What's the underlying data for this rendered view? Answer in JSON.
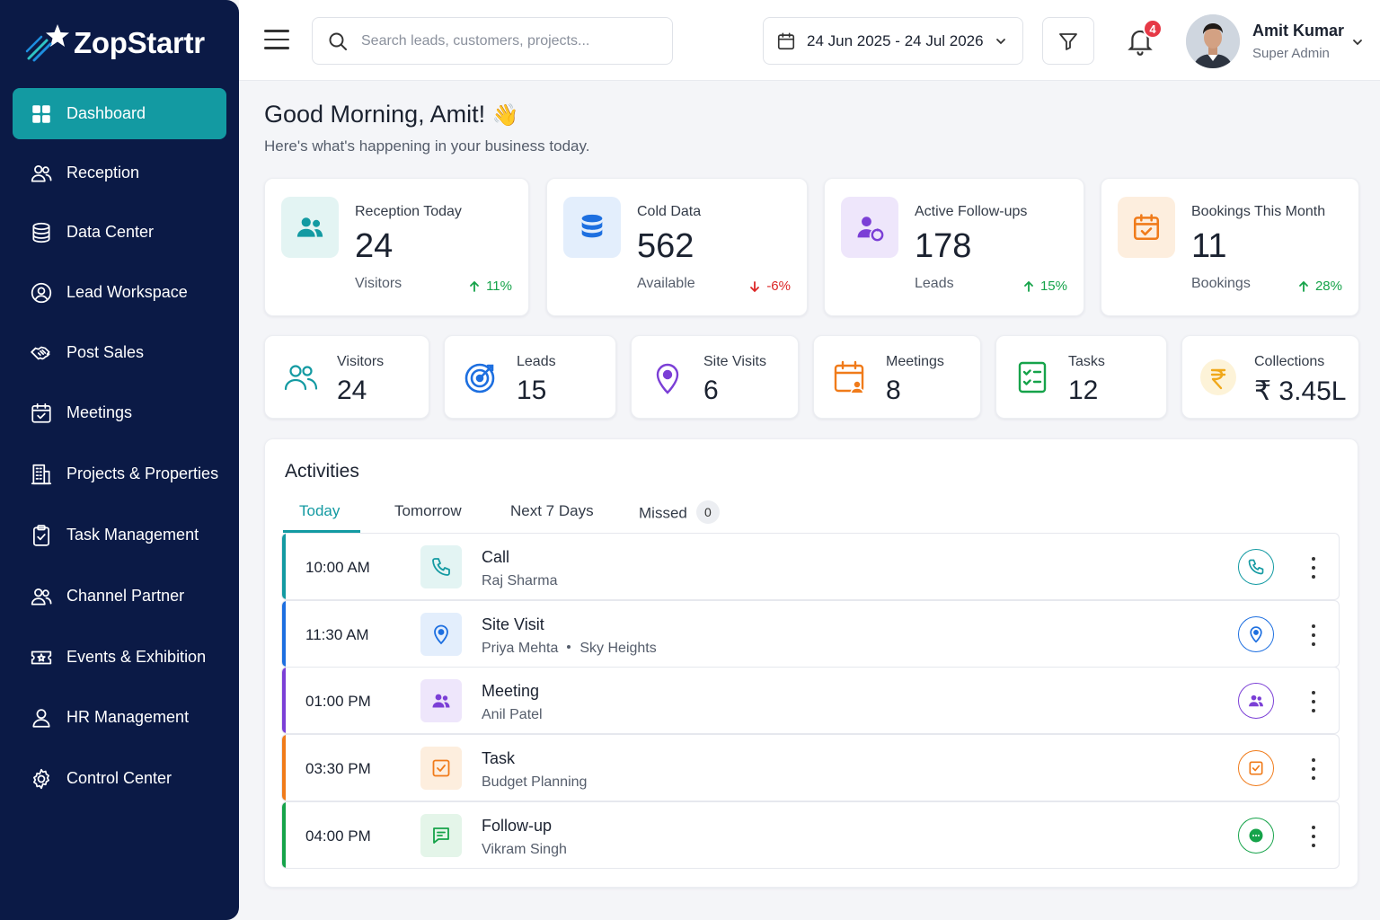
{
  "brand": {
    "name": "ZopStartr"
  },
  "sidebar": {
    "items": [
      {
        "label": "Dashboard",
        "icon": "dashboard-icon",
        "active": true
      },
      {
        "label": "Reception",
        "icon": "users-icon"
      },
      {
        "label": "Data Center",
        "icon": "database-icon"
      },
      {
        "label": "Lead Workspace",
        "icon": "lead-icon"
      },
      {
        "label": "Post Sales",
        "icon": "handshake-icon"
      },
      {
        "label": "Meetings",
        "icon": "calendar-check-icon"
      },
      {
        "label": "Projects & Properties",
        "icon": "building-icon"
      },
      {
        "label": "Task Management",
        "icon": "clipboard-icon"
      },
      {
        "label": "Channel Partner",
        "icon": "partner-icon"
      },
      {
        "label": "Events & Exhibition",
        "icon": "ticket-icon"
      },
      {
        "label": "HR Management",
        "icon": "person-icon"
      },
      {
        "label": "Control Center",
        "icon": "gear-icon"
      }
    ]
  },
  "header": {
    "search_placeholder": "Search leads, customers, projects...",
    "date_range": "24 Jun 2025 - 24 Jul 2026",
    "notifications_count": "4",
    "user": {
      "name": "Amit Kumar",
      "role": "Super Admin"
    }
  },
  "greeting": {
    "title": "Good Morning, Amit!",
    "emoji": "👋",
    "subtitle": "Here's what's happening in your business today."
  },
  "kpis": [
    {
      "label": "Reception Today",
      "value": "24",
      "sub": "Visitors",
      "trend": "11%",
      "direction": "up",
      "color": "#139aa2",
      "bg": "#e3f4f3"
    },
    {
      "label": "Cold Data",
      "value": "562",
      "sub": "Available",
      "trend": "-6%",
      "direction": "down",
      "color": "#1d6fe0",
      "bg": "#e3eefc"
    },
    {
      "label": "Active Follow-ups",
      "value": "178",
      "sub": "Leads",
      "trend": "15%",
      "direction": "up",
      "color": "#7b3fd6",
      "bg": "#eee6fb"
    },
    {
      "label": "Bookings This Month",
      "value": "11",
      "sub": "Bookings",
      "trend": "28%",
      "direction": "up",
      "color": "#f07b1a",
      "bg": "#fdeede"
    }
  ],
  "stats": [
    {
      "label": "Visitors",
      "value": "24",
      "icon": "visitors-icon",
      "color": "#139aa2"
    },
    {
      "label": "Leads",
      "value": "15",
      "icon": "target-icon",
      "color": "#1d6fe0"
    },
    {
      "label": "Site Visits",
      "value": "6",
      "icon": "location-pin-icon",
      "color": "#7b3fd6"
    },
    {
      "label": "Meetings",
      "value": "8",
      "icon": "meeting-calendar-icon",
      "color": "#f07b1a"
    },
    {
      "label": "Tasks",
      "value": "12",
      "icon": "checklist-icon",
      "color": "#16a34a"
    },
    {
      "label": "Collections",
      "value": "₹ 3.45L",
      "icon": "rupee-icon",
      "color": "#f0a81a"
    }
  ],
  "activities": {
    "title": "Activities",
    "tabs": [
      {
        "label": "Today",
        "active": true
      },
      {
        "label": "Tomorrow"
      },
      {
        "label": "Next 7 Days"
      },
      {
        "label": "Missed",
        "count": "0"
      }
    ],
    "items": [
      {
        "time": "10:00 AM",
        "title": "Call",
        "sub": "Raj Sharma",
        "sub2": "",
        "type": "phone-icon",
        "color": "#139aa2",
        "bg": "#e3f4f3"
      },
      {
        "time": "11:30 AM",
        "title": "Site Visit",
        "sub": "Priya Mehta",
        "sub2": "Sky Heights",
        "type": "location-pin-icon",
        "color": "#1d6fe0",
        "bg": "#e3eefc"
      },
      {
        "time": "01:00 PM",
        "title": "Meeting",
        "sub": "Anil Patel",
        "sub2": "",
        "type": "group-icon",
        "color": "#7b3fd6",
        "bg": "#eee6fb"
      },
      {
        "time": "03:30 PM",
        "title": "Task",
        "sub": "Budget Planning",
        "sub2": "",
        "type": "checkbox-icon",
        "color": "#f07b1a",
        "bg": "#fdeede"
      },
      {
        "time": "04:00 PM",
        "title": "Follow-up",
        "sub": "Vikram Singh",
        "sub2": "",
        "type": "chat-icon",
        "color": "#16a34a",
        "bg": "#e4f5e9"
      }
    ]
  }
}
